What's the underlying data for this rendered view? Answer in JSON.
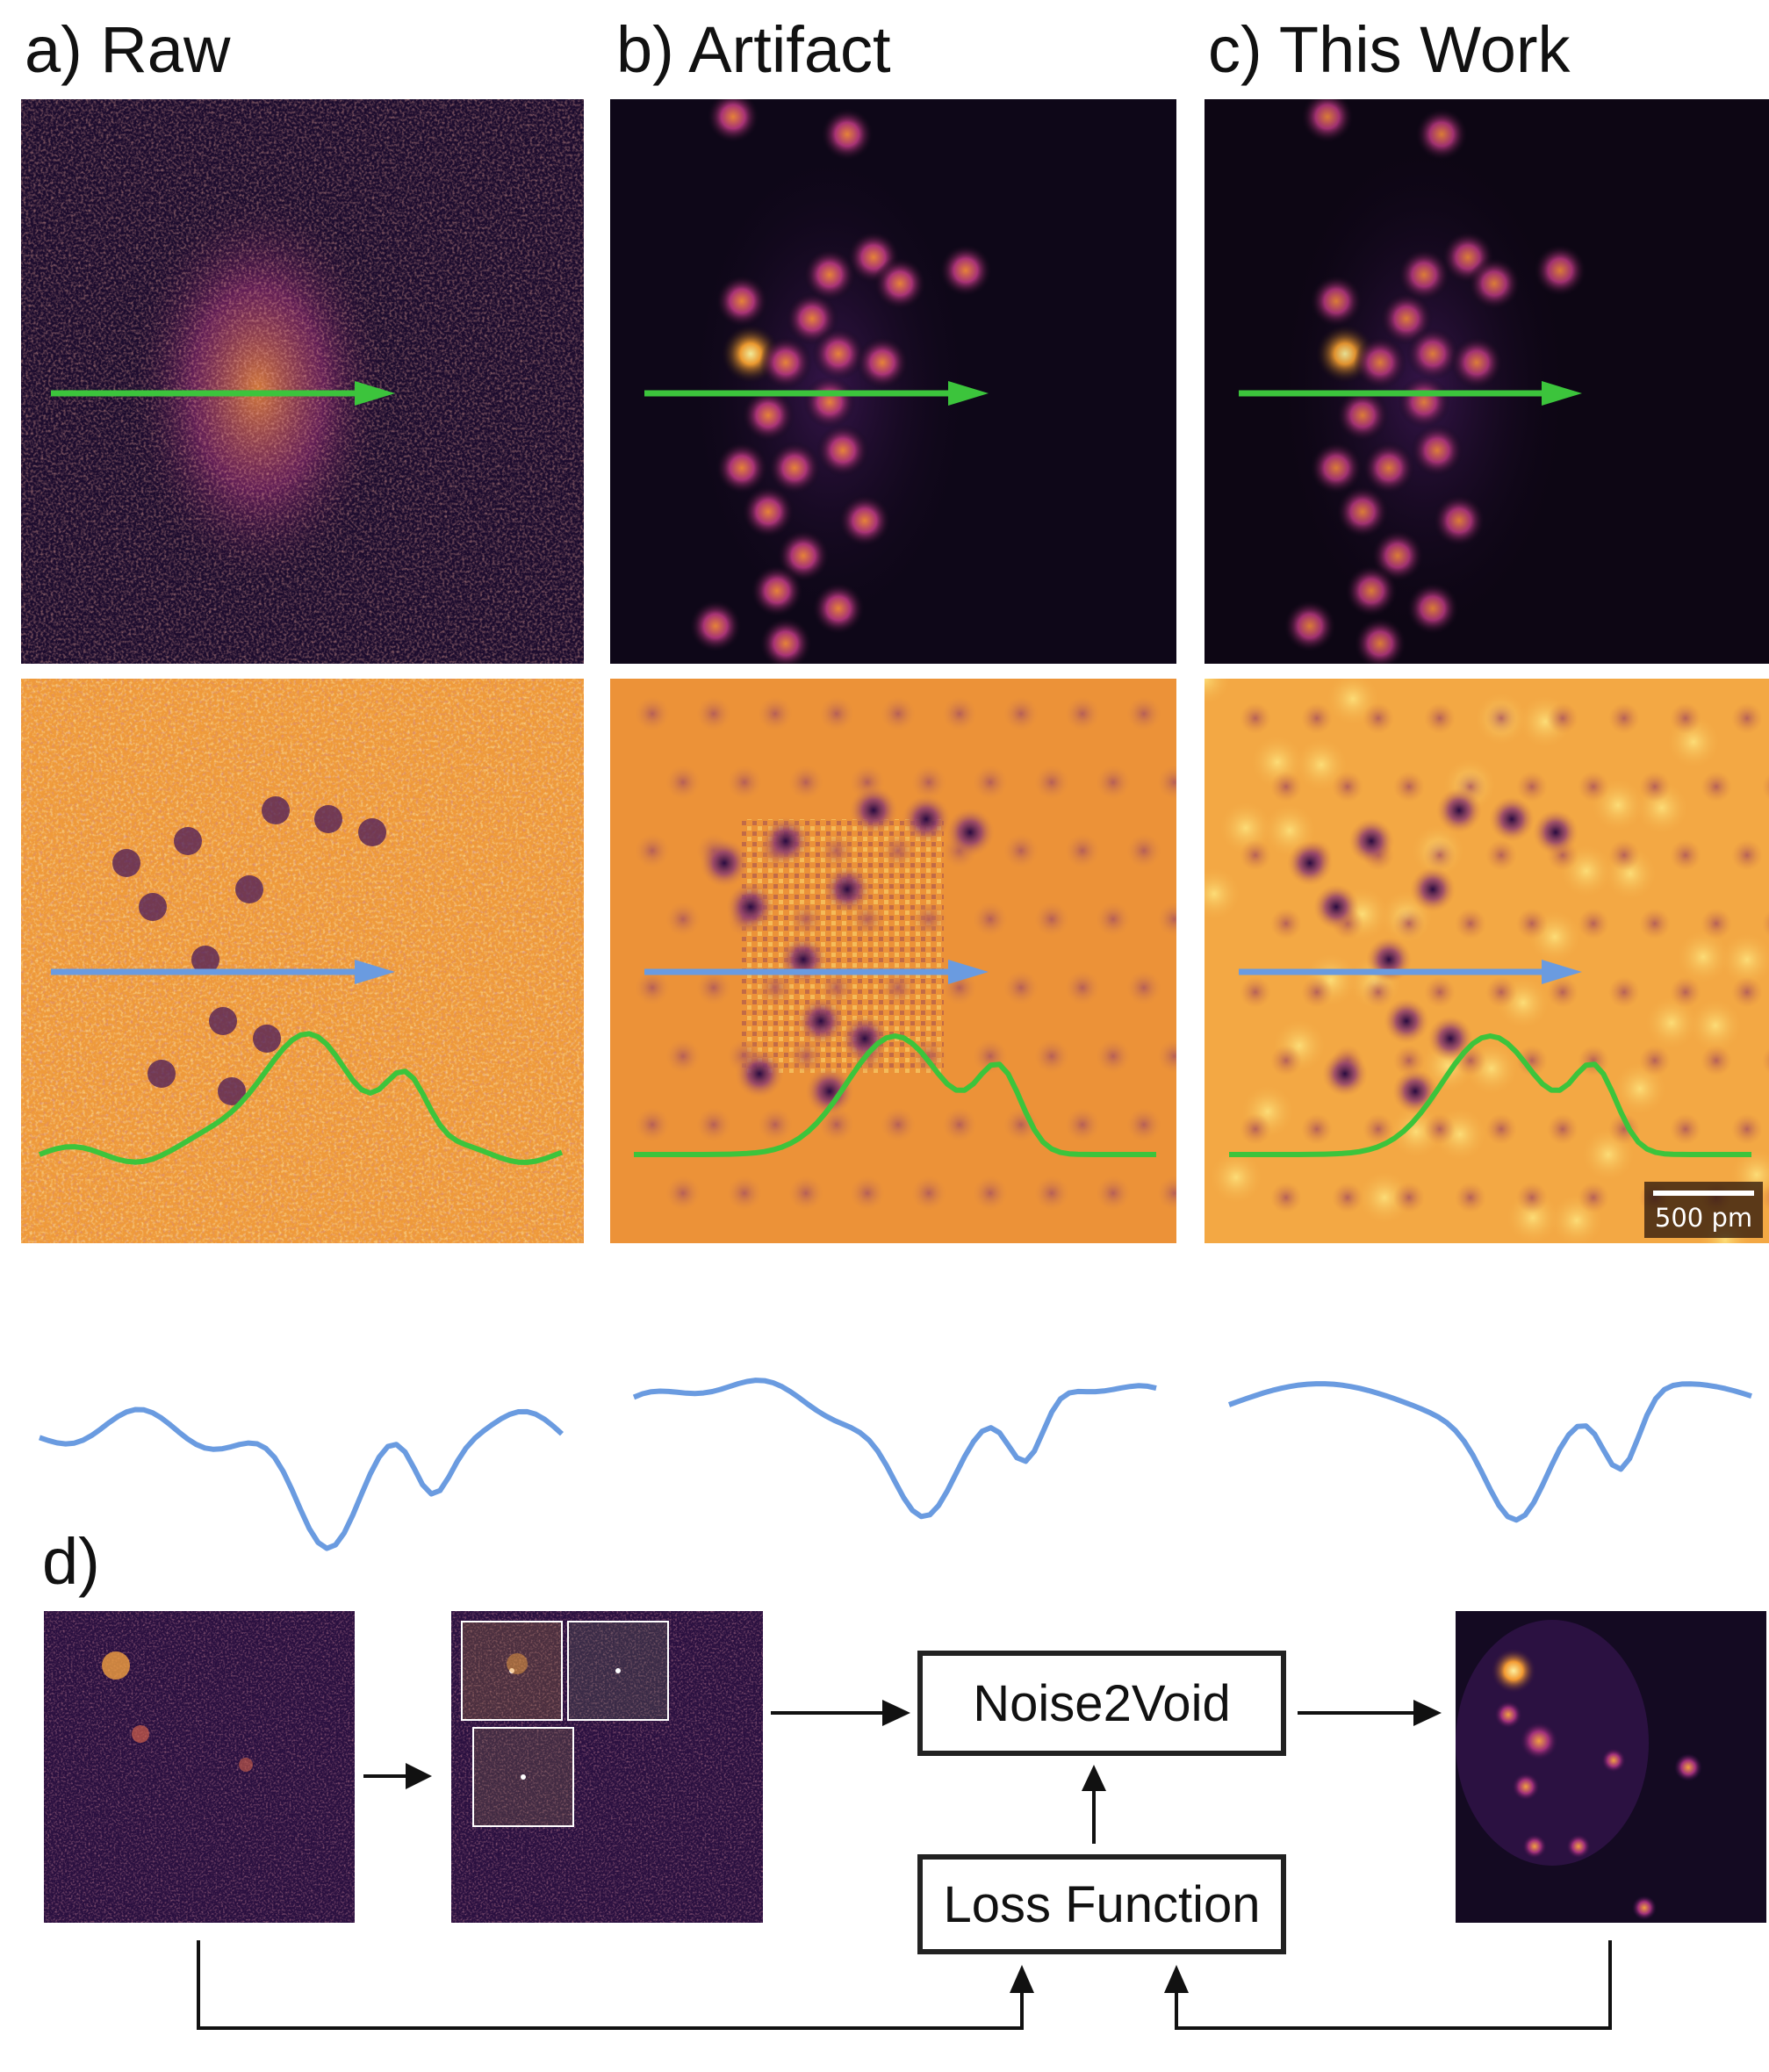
{
  "panels": {
    "a_label": "a) Raw",
    "b_label": "b) Artifact",
    "c_label": "c) This Work",
    "d_label": "d)"
  },
  "scale_bar": {
    "label": "500 pm"
  },
  "diagram": {
    "model_label": "Noise2Void",
    "loss_label": "Loss Function"
  },
  "colors": {
    "green_profile": "#3cc43c",
    "blue_profile": "#6a9be0",
    "inferno_dark": "#1a0a2a",
    "inferno_bright": "#fcd84a"
  }
}
